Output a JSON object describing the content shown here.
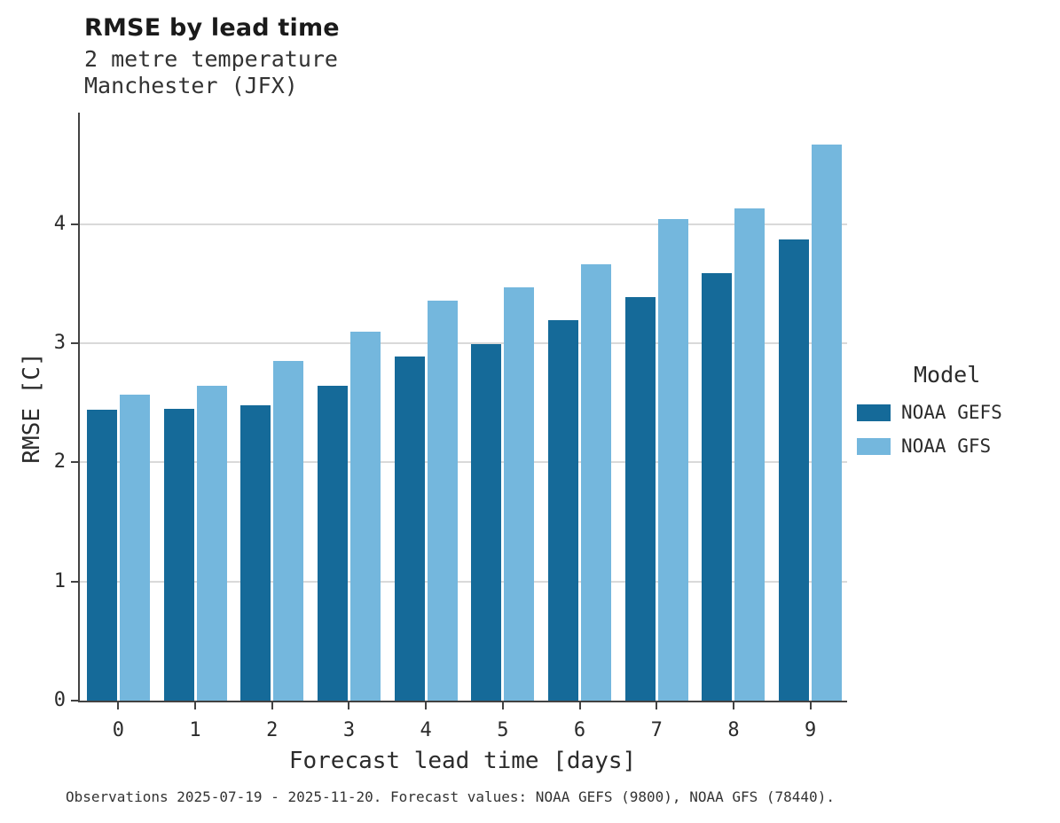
{
  "title": "RMSE by lead time",
  "subtitle_line1": "2 metre temperature",
  "subtitle_line2": "Manchester (JFX)",
  "footnote": "Observations 2025-07-19 - 2025-11-20. Forecast values: NOAA GEFS (9800), NOAA GFS (78440).",
  "legend": {
    "title": "Model"
  },
  "colors": {
    "gefs": "#156a99",
    "gfs": "#74b7dd",
    "grid": "#d9d9d9",
    "axis": "#424242",
    "text": "#2b2b2b"
  },
  "chart_data": {
    "type": "bar",
    "title": "RMSE by lead time",
    "subtitle": "2 metre temperature Manchester (JFX)",
    "xlabel": "Forecast lead time [days]",
    "ylabel": "RMSE [C]",
    "categories": [
      0,
      1,
      2,
      3,
      4,
      5,
      6,
      7,
      8,
      9
    ],
    "series": [
      {
        "name": "NOAA GEFS",
        "color": "#156a99",
        "values": [
          2.44,
          2.45,
          2.48,
          2.64,
          2.89,
          2.99,
          3.19,
          3.39,
          3.59,
          3.87
        ]
      },
      {
        "name": "NOAA GFS",
        "color": "#74b7dd",
        "values": [
          2.57,
          2.64,
          2.85,
          3.1,
          3.36,
          3.47,
          3.66,
          4.04,
          4.13,
          4.67
        ]
      }
    ],
    "ylim": [
      0,
      4.95
    ],
    "yticks": [
      0,
      1,
      2,
      3,
      4
    ],
    "grid": true,
    "legend_position": "right",
    "legend_title": "Model"
  }
}
